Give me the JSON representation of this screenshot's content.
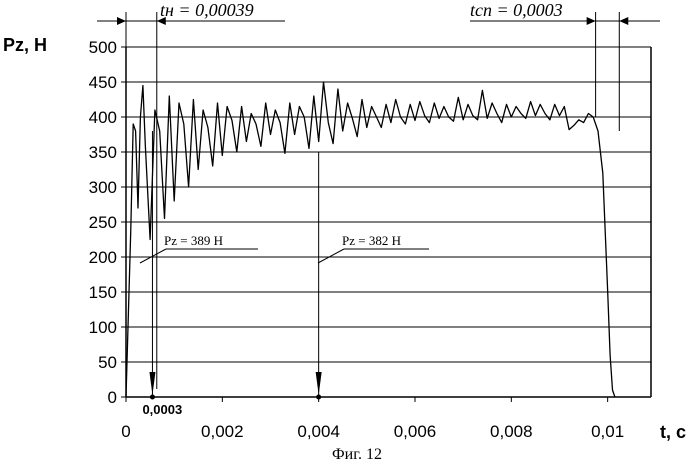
{
  "chart_data": {
    "type": "line",
    "title": "",
    "caption": "Фиг. 12",
    "xlabel": "t, c",
    "ylabel": "Pz, H",
    "xlim": [
      0,
      0.0109
    ],
    "ylim": [
      0,
      500
    ],
    "grid": "horizontal",
    "x_ticks": [
      0,
      0.002,
      0.004,
      0.006,
      0.008,
      0.01
    ],
    "x_tick_labels": [
      "0",
      "0,002",
      "0,004",
      "0,006",
      "0,008",
      "0,01"
    ],
    "y_ticks": [
      0,
      50,
      100,
      150,
      200,
      250,
      300,
      350,
      400,
      450,
      500
    ],
    "y_tick_labels": [
      "0",
      "50",
      "100",
      "150",
      "200",
      "250",
      "300",
      "350",
      "400",
      "450",
      "500"
    ],
    "markers": {
      "t_n": {
        "label": "tн = 0,00039",
        "from": 0,
        "to": 0.00039
      },
      "t_cn": {
        "label": "tсп = 0,0003",
        "from": 0.00975,
        "to": 0.0102
      },
      "point_0003": {
        "label": "0,0003",
        "t": 0.0003
      },
      "arrow_a": {
        "t": 0.0003,
        "from_pz": 380
      },
      "arrow_b": {
        "t": 0.004,
        "from_pz": 350
      }
    },
    "annotations": [
      {
        "text": "Pz = 389 H",
        "t": 0.0003,
        "pz": 389
      },
      {
        "text": "Pz = 382 H",
        "t": 0.004,
        "pz": 382
      }
    ],
    "series": [
      {
        "x": [
          0,
          5e-05,
          0.0001,
          0.00015,
          0.0002,
          0.00025,
          0.0003,
          0.00035,
          0.0004,
          0.0005,
          0.0006,
          0.0007,
          0.0008,
          0.0009,
          0.001,
          0.0011,
          0.0012,
          0.0013,
          0.0014,
          0.0015,
          0.0016,
          0.0017,
          0.0018,
          0.0019,
          0.002,
          0.0021,
          0.0022,
          0.0023,
          0.0024,
          0.0025,
          0.0026,
          0.0027,
          0.0028,
          0.0029,
          0.003,
          0.0031,
          0.0032,
          0.0033,
          0.0034,
          0.0035,
          0.0036,
          0.0037,
          0.0038,
          0.0039,
          0.004,
          0.0041,
          0.0042,
          0.0043,
          0.0044,
          0.0045,
          0.0046,
          0.0047,
          0.0048,
          0.0049,
          0.005,
          0.0051,
          0.0052,
          0.0053,
          0.0054,
          0.0055,
          0.0056,
          0.0057,
          0.0058,
          0.0059,
          0.006,
          0.0061,
          0.0062,
          0.0063,
          0.0064,
          0.0065,
          0.0066,
          0.0067,
          0.0068,
          0.0069,
          0.007,
          0.0071,
          0.0072,
          0.0073,
          0.0074,
          0.0075,
          0.0076,
          0.0077,
          0.0078,
          0.0079,
          0.008,
          0.0081,
          0.0082,
          0.0083,
          0.0084,
          0.0085,
          0.0086,
          0.0087,
          0.0088,
          0.0089,
          0.009,
          0.0091,
          0.0092,
          0.0093,
          0.0094,
          0.0095,
          0.0096,
          0.0097,
          0.0098,
          0.0099,
          0.01,
          0.01005,
          0.0101,
          0.01015
        ],
        "y": [
          0,
          120,
          240,
          390,
          380,
          270,
          400,
          445,
          360,
          225,
          410,
          380,
          255,
          430,
          280,
          420,
          390,
          300,
          425,
          325,
          410,
          385,
          330,
          420,
          345,
          415,
          395,
          350,
          415,
          365,
          405,
          390,
          358,
          420,
          375,
          410,
          392,
          348,
          420,
          375,
          415,
          400,
          355,
          430,
          365,
          450,
          392,
          362,
          440,
          380,
          420,
          398,
          372,
          425,
          385,
          415,
          400,
          385,
          418,
          392,
          425,
          400,
          390,
          418,
          395,
          422,
          402,
          392,
          420,
          398,
          415,
          400,
          394,
          428,
          396,
          418,
          402,
          396,
          438,
          398,
          420,
          405,
          392,
          418,
          400,
          415,
          405,
          398,
          422,
          402,
          418,
          405,
          396,
          418,
          402,
          415,
          382,
          388,
          396,
          392,
          405,
          400,
          380,
          320,
          150,
          60,
          10,
          0
        ]
      }
    ]
  }
}
